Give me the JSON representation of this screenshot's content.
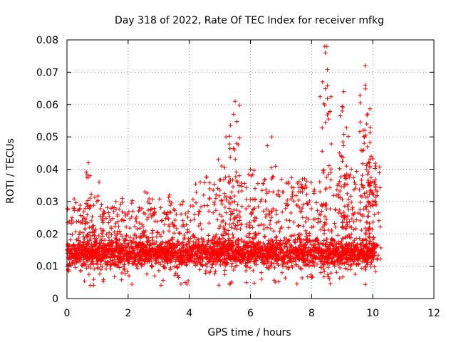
{
  "chart_data": {
    "type": "scatter",
    "title": "Day 318 of 2022, Rate Of TEC Index for receiver mfkg",
    "xlabel": "GPS time / hours",
    "ylabel": "ROTI / TECUs",
    "xlim": [
      0,
      12
    ],
    "ylim": [
      0,
      0.08
    ],
    "xticks": [
      "0",
      "2",
      "4",
      "6",
      "8",
      "10",
      "12"
    ],
    "yticks": [
      "0",
      "0.01",
      "0.02",
      "0.03",
      "0.04",
      "0.05",
      "0.06",
      "0.07",
      "0.08"
    ],
    "grid": true,
    "marker": "+",
    "color": "#ff0000",
    "series": [
      {
        "name": "ROTI",
        "x_range": [
          0,
          10.1
        ],
        "typical_range": [
          0.004,
          0.02
        ],
        "peaks": [
          {
            "x": 0.7,
            "y": 0.042
          },
          {
            "x": 0.75,
            "y": 0.038
          },
          {
            "x": 1.05,
            "y": 0.036
          },
          {
            "x": 1.6,
            "y": 0.03
          },
          {
            "x": 2.55,
            "y": 0.033
          },
          {
            "x": 3.35,
            "y": 0.032
          },
          {
            "x": 4.95,
            "y": 0.043
          },
          {
            "x": 5.2,
            "y": 0.05
          },
          {
            "x": 5.45,
            "y": 0.057
          },
          {
            "x": 5.5,
            "y": 0.061
          },
          {
            "x": 6.0,
            "y": 0.04
          },
          {
            "x": 6.7,
            "y": 0.05
          },
          {
            "x": 7.7,
            "y": 0.037
          },
          {
            "x": 8.45,
            "y": 0.076
          },
          {
            "x": 8.5,
            "y": 0.078
          },
          {
            "x": 9.05,
            "y": 0.064
          },
          {
            "x": 9.0,
            "y": 0.058
          },
          {
            "x": 9.3,
            "y": 0.04
          },
          {
            "x": 9.75,
            "y": 0.072
          },
          {
            "x": 9.75,
            "y": 0.066
          },
          {
            "x": 9.8,
            "y": 0.054
          },
          {
            "x": 9.95,
            "y": 0.044
          },
          {
            "x": 10.1,
            "y": 0.041
          }
        ]
      }
    ]
  }
}
